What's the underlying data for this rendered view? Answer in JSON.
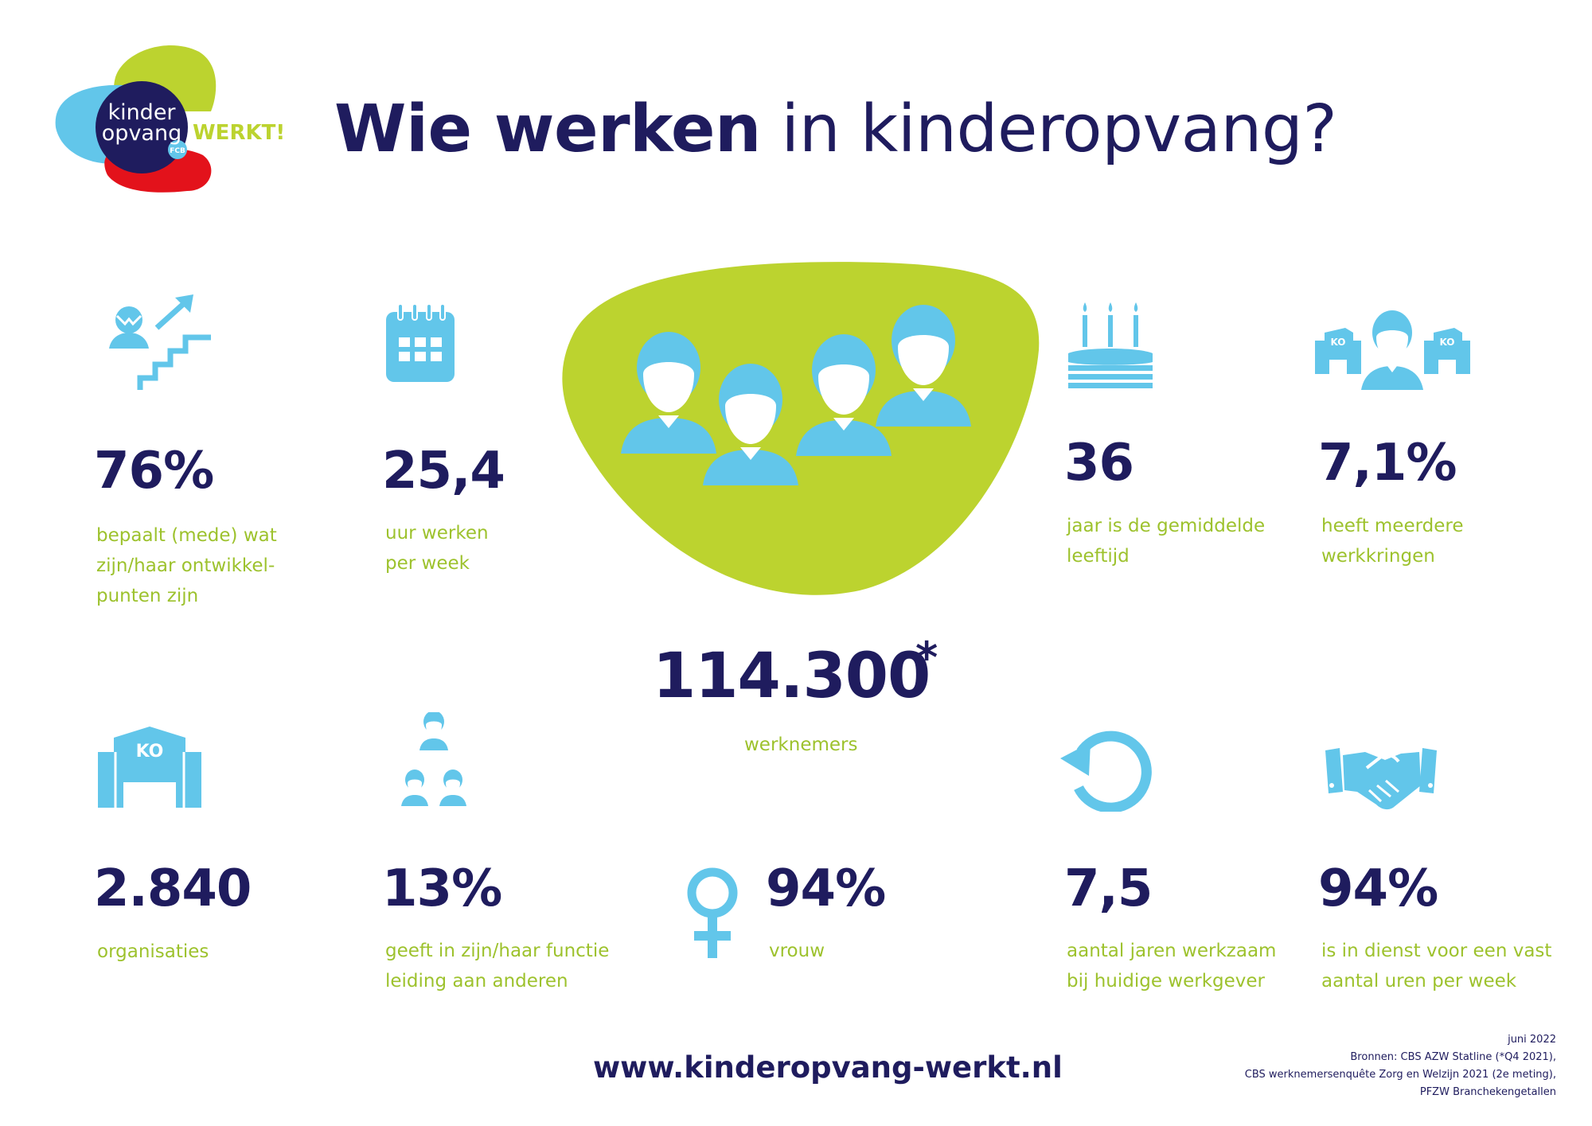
{
  "logo": {
    "line1": "kinder",
    "line2": "opvang",
    "werkt": "WERKT!",
    "badge": "FCB"
  },
  "title": {
    "bold": "Wie werken",
    "rest": " in kinderopvang?"
  },
  "stats": {
    "ontwikkel": {
      "value": "76%",
      "desc_lines": [
        "bepaalt (mede) wat",
        "zijn/haar ontwikkel-",
        "punten zijn"
      ],
      "icon": "stairs-growth-icon"
    },
    "uren": {
      "value": "25,4",
      "desc_lines": [
        "uur werken",
        "per week"
      ],
      "icon": "calendar-icon"
    },
    "leeftijd": {
      "value": "36",
      "desc_lines": [
        "jaar is de gemiddelde",
        "leeftijd"
      ],
      "icon": "birthday-cake-icon"
    },
    "werkkringen": {
      "value": "7,1%",
      "desc_lines": [
        "heeft meerdere",
        "werkkringen"
      ],
      "icon": "multiple-workplaces-icon"
    },
    "organisaties": {
      "value": "2.840",
      "desc_lines": [
        "organisaties"
      ],
      "icon": "ko-building-icon"
    },
    "leiding": {
      "value": "13%",
      "desc_lines": [
        "geeft in zijn/haar functie",
        "leiding aan anderen"
      ],
      "icon": "hierarchy-icon"
    },
    "vrouw": {
      "value": "94%",
      "desc_lines": [
        "vrouw"
      ],
      "icon": "female-symbol-icon"
    },
    "jaren": {
      "value": "7,5",
      "desc_lines": [
        "aantal jaren werkzaam",
        "bij huidige werkgever"
      ],
      "icon": "refresh-cycle-icon"
    },
    "vast": {
      "value": "94%",
      "desc_lines": [
        "is in dienst voor een vast",
        "aantal uren per week"
      ],
      "icon": "handshake-icon"
    }
  },
  "central": {
    "value": "114.300",
    "star": "*",
    "desc": "werknemers",
    "icon": "group-people-icon"
  },
  "website": "www.kinderopvang-werkt.nl",
  "sources": {
    "date": "juni 2022",
    "lines": [
      "Bronnen: CBS AZW Statline (*Q4 2021),",
      "CBS werknemersenquête Zorg en Welzijn 2021 (2e meting),",
      "PFZW Branchekengetallen"
    ]
  },
  "colors": {
    "navy": "#1f1c5e",
    "green": "#bcd32f",
    "text_green": "#9dc22d",
    "light_blue": "#62c6ea",
    "red": "#e3121b"
  }
}
